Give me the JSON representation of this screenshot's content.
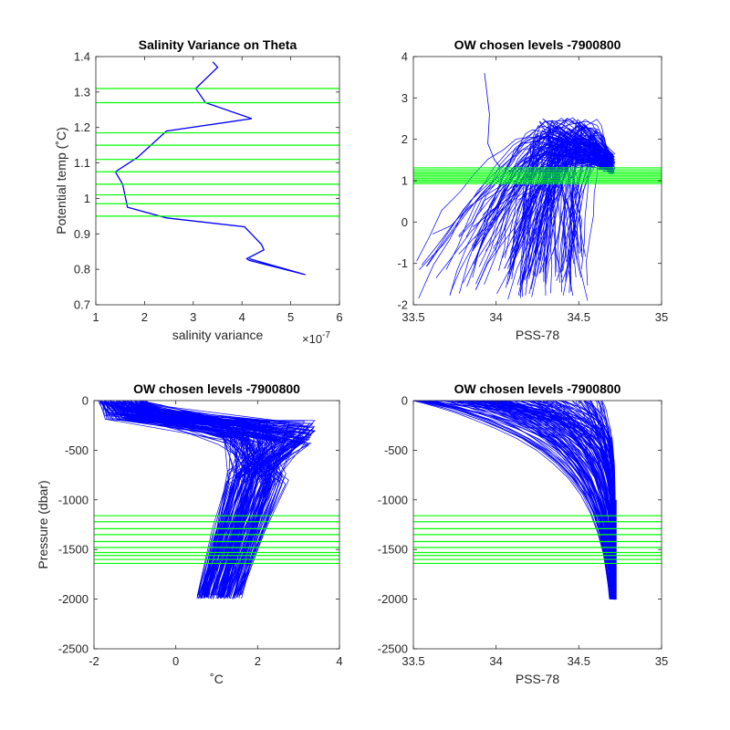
{
  "chart_data": [
    {
      "type": "line",
      "title": "Salinity Variance on Theta",
      "xlabel": "salinity variance",
      "ylabel": "Potential temp (˚C)",
      "x_exponent_label": "×10",
      "x_exponent_power": "-7",
      "xlim": [
        1,
        6
      ],
      "ylim": [
        0.7,
        1.4
      ],
      "xticks": [
        "1",
        "2",
        "3",
        "4",
        "5",
        "6"
      ],
      "yticks": [
        "0.7",
        "0.8",
        "0.9",
        "1",
        "1.1",
        "1.2",
        "1.3",
        "1.4"
      ],
      "series": [
        {
          "color": "#0000ff",
          "x": [
            3.4,
            3.5,
            3.05,
            3.25,
            4.2,
            2.45,
            1.85,
            1.4,
            1.55,
            1.65,
            2.45,
            4.05,
            4.4,
            4.45,
            4.1,
            4.15,
            5.3,
            4.4,
            4.15
          ],
          "y": [
            1.385,
            1.37,
            1.31,
            1.27,
            1.225,
            1.19,
            1.115,
            1.075,
            1.04,
            0.975,
            0.945,
            0.92,
            0.87,
            0.855,
            0.83,
            0.825,
            0.785,
            0.82,
            0.83
          ]
        }
      ],
      "hlines": {
        "color": "#00ff00",
        "y": [
          1.31,
          1.27,
          1.185,
          1.15,
          1.11,
          1.075,
          1.04,
          1.01,
          0.985,
          0.95
        ]
      }
    },
    {
      "type": "line",
      "title": "OW chosen levels -7900800",
      "xlabel": "PSS-78",
      "ylabel": "",
      "xlim": [
        33.5,
        35
      ],
      "ylim": [
        -2,
        4
      ],
      "xticks": [
        "33.5",
        "34",
        "34.5",
        "35"
      ],
      "yticks": [
        "-2",
        "-1",
        "0",
        "1",
        "2",
        "3",
        "4"
      ],
      "profile_count": 150,
      "line_color": "#0000ff",
      "envelope": {
        "warm_peak": {
          "s": 34.47,
          "t": 2.5
        },
        "deep_end": {
          "s": 34.72,
          "t": 1.6
        },
        "min_t": -1.85,
        "max_t_spike": {
          "s": 33.93,
          "t": 3.6
        }
      },
      "hlines": {
        "color": "#00ff00",
        "y": [
          0.93,
          0.97,
          1.01,
          1.05,
          1.09,
          1.13,
          1.17,
          1.21,
          1.26,
          1.31
        ]
      }
    },
    {
      "type": "line",
      "title": "OW chosen levels -7900800",
      "xlabel": "˚C",
      "ylabel": "Pressure (dbar)",
      "xlim": [
        -2,
        4
      ],
      "ylim": [
        -2500,
        0
      ],
      "xticks": [
        "-2",
        "0",
        "2",
        "4"
      ],
      "yticks": [
        "-2500",
        "-2000",
        "-1500",
        "-1000",
        "-500",
        "0"
      ],
      "profile_count": 150,
      "line_color": "#0000ff",
      "envelope": {
        "surface_t_range": [
          -1.9,
          3.7
        ],
        "deep_t_range": [
          0.5,
          1.6
        ],
        "bottom_pressure": -2000
      },
      "hlines": {
        "color": "#00ff00",
        "y": [
          -1160,
          -1220,
          -1290,
          -1350,
          -1420,
          -1480,
          -1530,
          -1560,
          -1600,
          -1640
        ]
      }
    },
    {
      "type": "line",
      "title": "OW chosen levels -7900800",
      "xlabel": "PSS-78",
      "ylabel": "",
      "xlim": [
        33.5,
        35
      ],
      "ylim": [
        -2500,
        0
      ],
      "xticks": [
        "33.5",
        "34",
        "34.5",
        "35"
      ],
      "yticks": [
        "-2500",
        "-2000",
        "-1500",
        "-1000",
        "-500",
        "0"
      ],
      "profile_count": 150,
      "line_color": "#0000ff",
      "envelope": {
        "surface_s_range": [
          33.5,
          34.7
        ],
        "deep_s": 34.72,
        "bottom_pressure": -2000
      },
      "hlines": {
        "color": "#00ff00",
        "y": [
          -1160,
          -1220,
          -1290,
          -1350,
          -1420,
          -1480,
          -1530,
          -1560,
          -1600,
          -1640
        ]
      }
    }
  ]
}
